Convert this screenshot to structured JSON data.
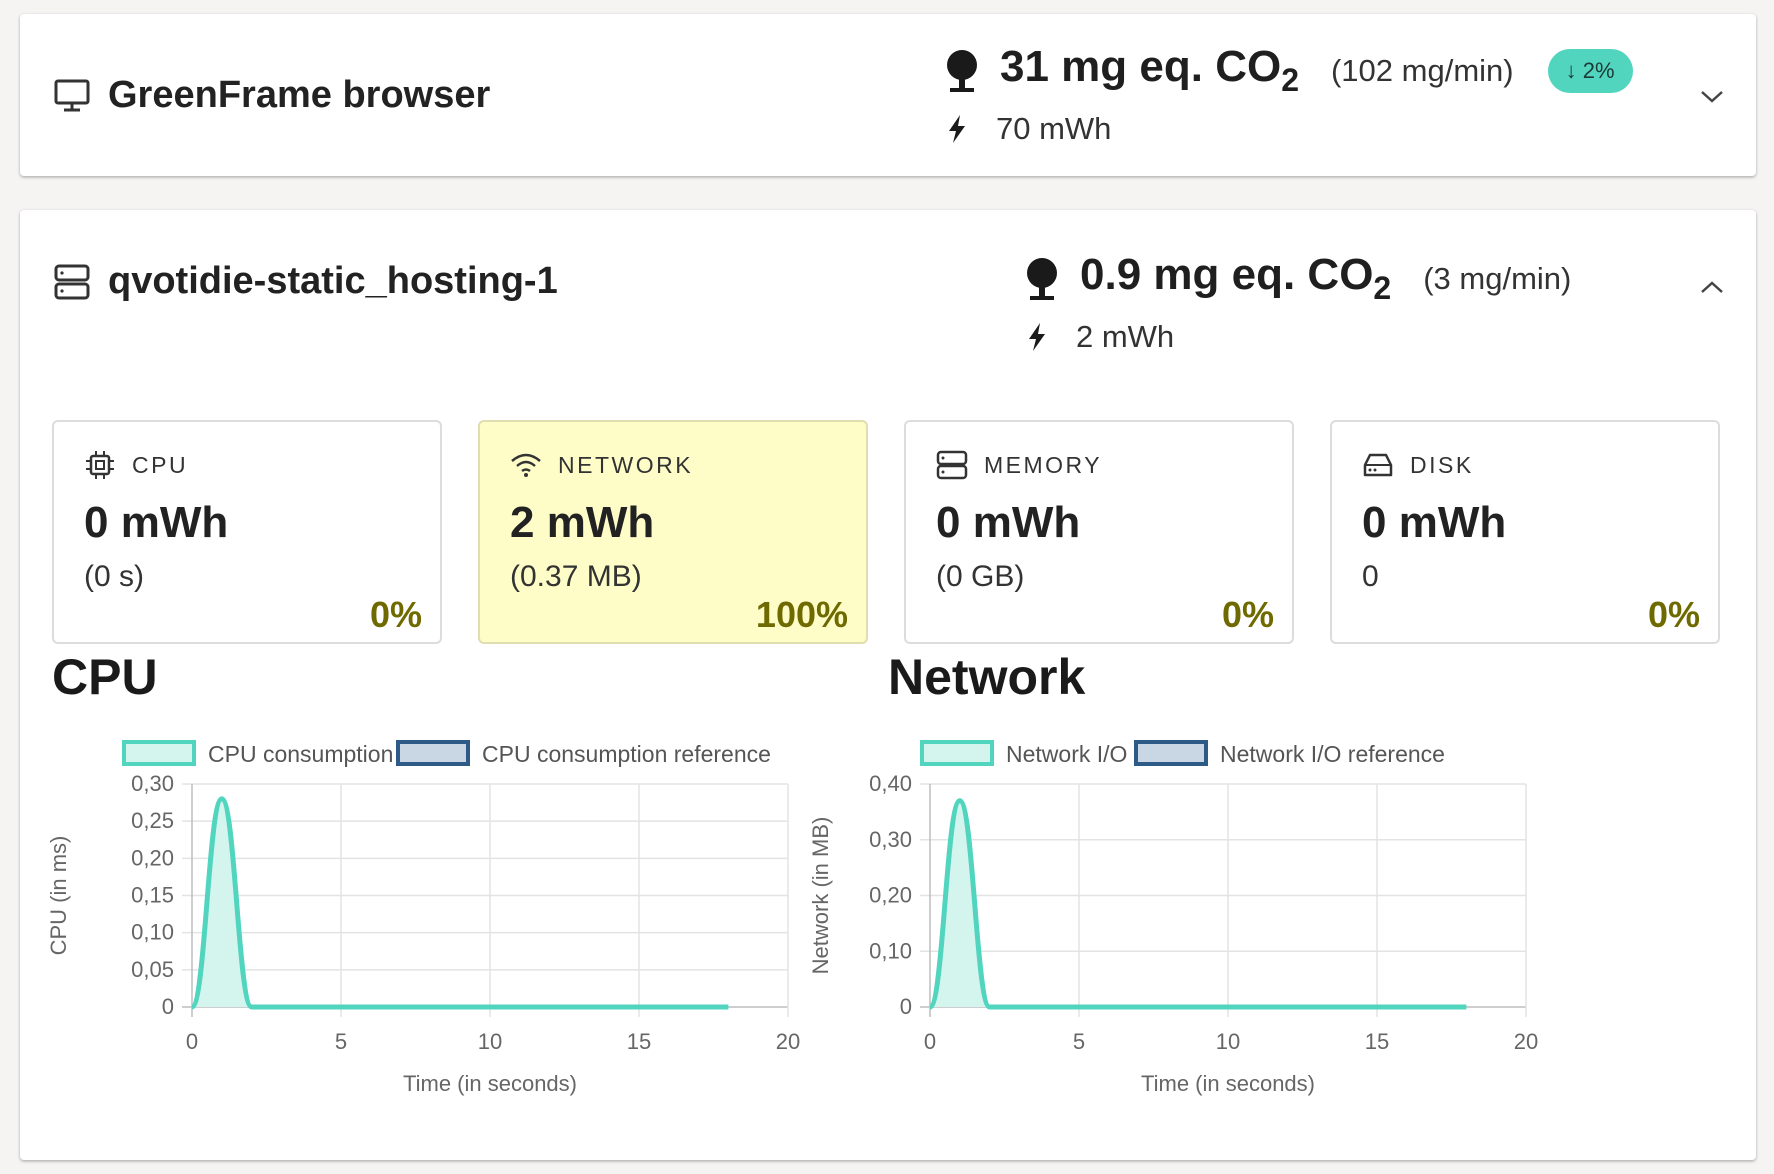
{
  "browser_card": {
    "title": "GreenFrame browser",
    "co2_value": "31 mg eq. CO",
    "co2_sub": "2",
    "rate": "(102 mg/min)",
    "badge": "↓ 2%",
    "energy": "70 mWh",
    "icons": [
      "monitor-icon",
      "tree-icon",
      "bolt-icon",
      "chevron-down-icon"
    ]
  },
  "container_card": {
    "title": "qvotidie-static_hosting-1",
    "co2_value": "0.9 mg eq. CO",
    "co2_sub": "2",
    "rate": "(3 mg/min)",
    "energy": "2 mWh",
    "icons": [
      "server-icon",
      "tree-icon",
      "bolt-icon",
      "chevron-up-icon"
    ],
    "stats": [
      {
        "icon": "cpu-icon",
        "label": "CPU",
        "value": "0 mWh",
        "sub": "(0 s)",
        "pct": "0%",
        "highlight": false
      },
      {
        "icon": "wifi-icon",
        "label": "NETWORK",
        "value": "2 mWh",
        "sub": "(0.37 MB)",
        "pct": "100%",
        "highlight": true
      },
      {
        "icon": "memory-icon",
        "label": "MEMORY",
        "value": "0 mWh",
        "sub": "(0 GB)",
        "pct": "0%",
        "highlight": false
      },
      {
        "icon": "disk-icon",
        "label": "DISK",
        "value": "0 mWh",
        "sub": "0",
        "pct": "0%",
        "highlight": false
      }
    ],
    "sections": {
      "cpu": "CPU",
      "network": "Network"
    }
  },
  "colors": {
    "accent": "#52d5bf",
    "accent_fill": "#d4f5ee",
    "reference": "#2e5a87",
    "reference_fill": "#c9d6e3",
    "stat_highlight": "#fefdc8",
    "percent": "#6f6a00"
  },
  "chart_data": [
    {
      "type": "area",
      "title": "",
      "xlabel": "Time (in seconds)",
      "ylabel": "CPU (in ms)",
      "xlim": [
        0,
        20
      ],
      "ylim": [
        0,
        0.3
      ],
      "x_ticks": [
        "0",
        "5",
        "10",
        "15",
        "20"
      ],
      "y_ticks": [
        "0",
        "0,05",
        "0,10",
        "0,15",
        "0,20",
        "0,25",
        "0,30"
      ],
      "legend": "top",
      "grid": true,
      "series": [
        {
          "name": "CPU consumption",
          "x": [
            0,
            1,
            2,
            3,
            4,
            5,
            6,
            7,
            8,
            9,
            10,
            11,
            12,
            13,
            14,
            15,
            16,
            17,
            18
          ],
          "values": [
            0,
            0.28,
            0,
            0,
            0,
            0,
            0,
            0,
            0,
            0,
            0,
            0,
            0,
            0,
            0,
            0,
            0,
            0,
            0
          ]
        },
        {
          "name": "CPU consumption reference",
          "x": [],
          "values": []
        }
      ]
    },
    {
      "type": "area",
      "title": "",
      "xlabel": "Time (in seconds)",
      "ylabel": "Network (in MB)",
      "xlim": [
        0,
        20
      ],
      "ylim": [
        0,
        0.4
      ],
      "x_ticks": [
        "0",
        "5",
        "10",
        "15",
        "20"
      ],
      "y_ticks": [
        "0",
        "0,10",
        "0,20",
        "0,30",
        "0,40"
      ],
      "legend": "top",
      "grid": true,
      "series": [
        {
          "name": "Network I/O",
          "x": [
            0,
            1,
            2,
            3,
            4,
            5,
            6,
            7,
            8,
            9,
            10,
            11,
            12,
            13,
            14,
            15,
            16,
            17,
            18
          ],
          "values": [
            0,
            0.37,
            0,
            0,
            0,
            0,
            0,
            0,
            0,
            0,
            0,
            0,
            0,
            0,
            0,
            0,
            0,
            0,
            0
          ]
        },
        {
          "name": "Network I/O reference",
          "x": [],
          "values": []
        }
      ]
    }
  ]
}
